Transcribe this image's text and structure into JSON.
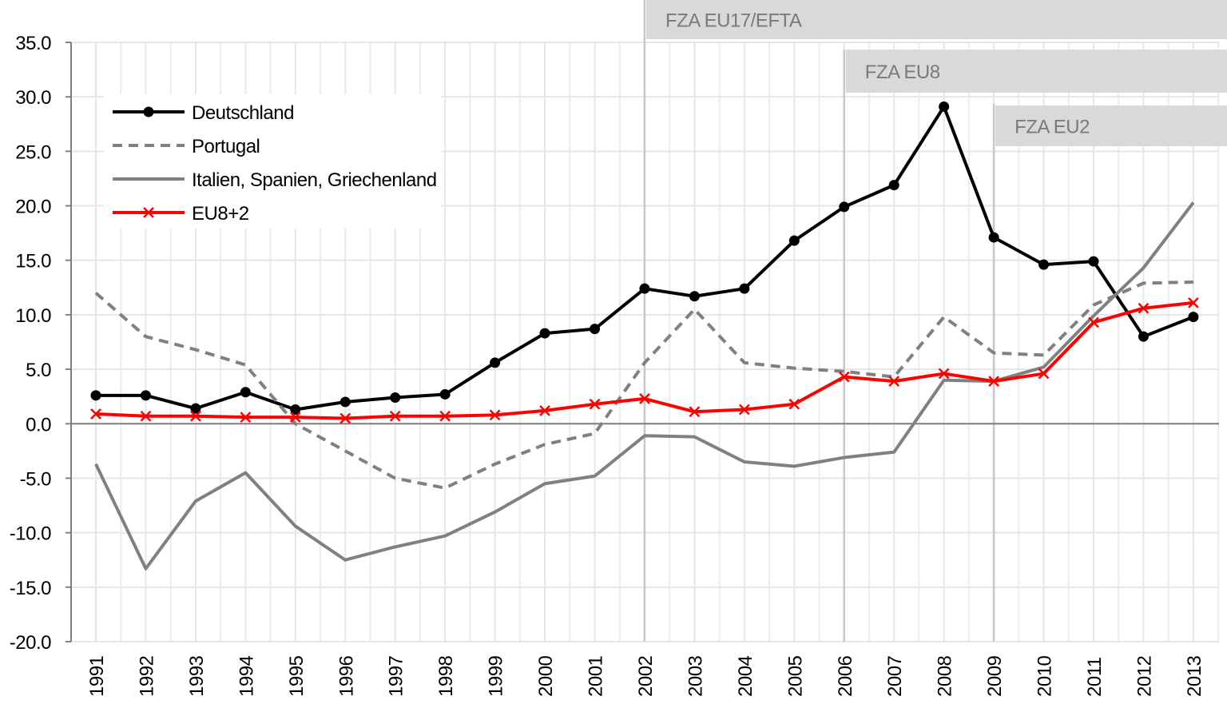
{
  "chart_data": {
    "type": "line",
    "title": "",
    "xlabel": "",
    "ylabel": "",
    "ylim": [
      -20,
      35
    ],
    "yticks": [
      "35.0",
      "30.0",
      "25.0",
      "20.0",
      "15.0",
      "10.0",
      "5.0",
      "0.0",
      "-5.0",
      "-10.0",
      "-15.0",
      "-20.0"
    ],
    "ytick_values": [
      35,
      30,
      25,
      20,
      15,
      10,
      5,
      0,
      -5,
      -10,
      -15,
      -20
    ],
    "grid": true,
    "legend_position": "top-left",
    "x": [
      "1991",
      "1992",
      "1993",
      "1994",
      "1995",
      "1996",
      "1997",
      "1998",
      "1999",
      "2000",
      "2001",
      "2002",
      "2003",
      "2004",
      "2005",
      "2006",
      "2007",
      "2008",
      "2009",
      "2010",
      "2011",
      "2012",
      "2013"
    ],
    "series": [
      {
        "name": "Deutschland",
        "color": "#000000",
        "style": "solid",
        "marker": "circle",
        "values": [
          2.6,
          2.6,
          1.4,
          2.9,
          1.3,
          2.0,
          2.4,
          2.7,
          5.6,
          8.3,
          8.7,
          12.4,
          11.7,
          12.4,
          16.8,
          19.9,
          21.9,
          29.1,
          17.1,
          14.6,
          14.9,
          8.0,
          9.8
        ]
      },
      {
        "name": "Portugal",
        "color": "#808080",
        "style": "dashed",
        "marker": "none",
        "values": [
          12.0,
          8.0,
          6.8,
          5.4,
          0.0,
          -2.5,
          -5.0,
          -5.9,
          -3.7,
          -1.9,
          -0.9,
          5.6,
          10.5,
          5.6,
          5.1,
          4.8,
          4.3,
          9.8,
          6.5,
          6.3,
          10.9,
          12.9,
          13.0
        ]
      },
      {
        "name": "Italien, Spanien, Griechenland",
        "color": "#808080",
        "style": "solid",
        "marker": "none",
        "values": [
          -3.7,
          -13.3,
          -7.1,
          -4.5,
          -9.4,
          -12.5,
          -11.3,
          -10.3,
          -8.1,
          -5.5,
          -4.8,
          -1.1,
          -1.2,
          -3.5,
          -3.9,
          -3.1,
          -2.6,
          4.0,
          3.9,
          5.2,
          9.9,
          14.3,
          20.3
        ]
      },
      {
        "name": "EU8+2",
        "color": "#ff0000",
        "style": "solid",
        "marker": "x",
        "values": [
          0.9,
          0.7,
          0.7,
          0.6,
          0.6,
          0.5,
          0.7,
          0.7,
          0.8,
          1.2,
          1.8,
          2.3,
          1.1,
          1.3,
          1.8,
          4.3,
          3.9,
          4.6,
          3.9,
          4.6,
          9.3,
          10.6,
          11.1
        ]
      }
    ],
    "annotations": [
      {
        "label": "FZA EU17/EFTA",
        "start_year": "2002"
      },
      {
        "label": "FZA EU8",
        "start_year": "2006"
      },
      {
        "label": "FZA EU2",
        "start_year": "2009"
      }
    ]
  }
}
